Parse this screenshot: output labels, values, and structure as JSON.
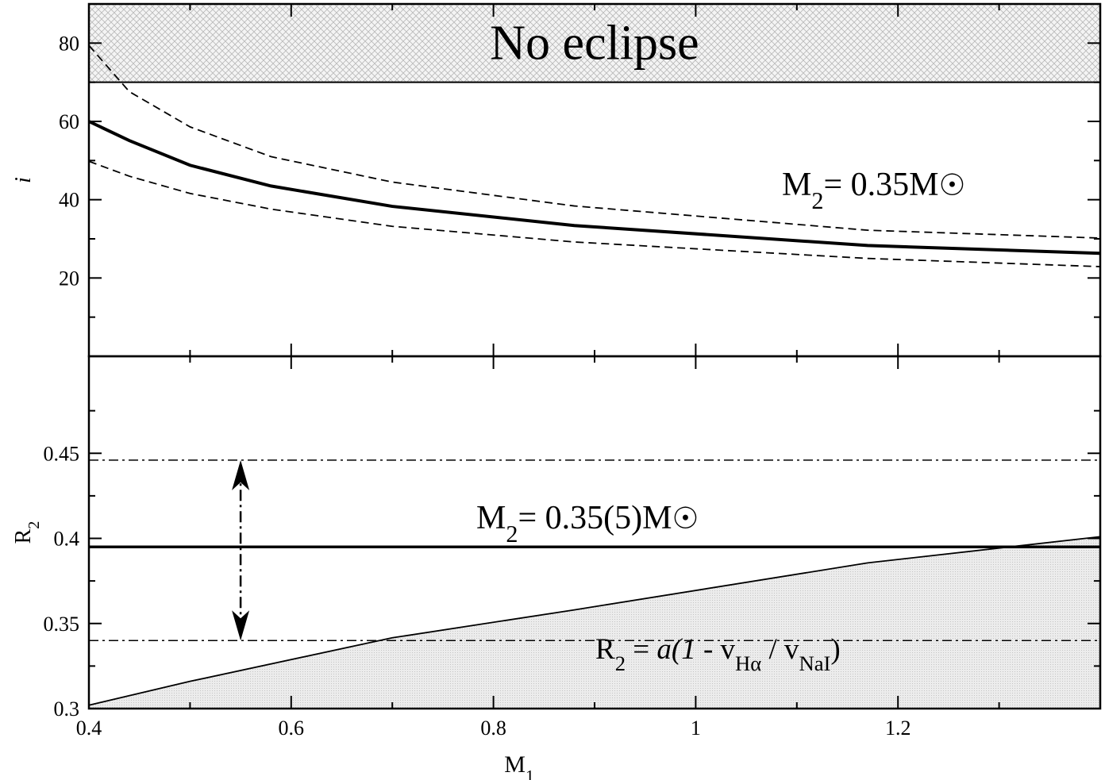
{
  "chart_data": [
    {
      "type": "line",
      "xlim": [
        0.4,
        1.4
      ],
      "ylim": [
        0,
        90
      ],
      "yticks": [
        20,
        40,
        60,
        80
      ],
      "yminorticks": [
        10,
        30,
        50,
        70,
        90
      ],
      "ylabel": [
        {
          "text": "i",
          "style": "italic"
        }
      ],
      "region": {
        "from": 70,
        "to": 90,
        "label": "No eclipse"
      },
      "x": [
        0.4,
        0.44,
        0.5,
        0.58,
        0.7,
        0.88,
        1.17,
        1.4
      ],
      "series": [
        {
          "style": "solid",
          "color": "#000000",
          "values": [
            60,
            55.1,
            48.8,
            43.5,
            38.3,
            33.4,
            28.3,
            26.3
          ]
        },
        {
          "style": "dashed",
          "color": "#000000",
          "values": [
            79.4,
            67.6,
            58.6,
            51,
            44.5,
            38.4,
            32.2,
            30.2
          ]
        },
        {
          "style": "dashed",
          "color": "#000000",
          "values": [
            49.8,
            46,
            41.6,
            37.6,
            33.2,
            29.2,
            25,
            22.9
          ]
        }
      ],
      "annotations": [
        [
          {
            "text": "M",
            "style": "normal"
          },
          {
            "text": "2",
            "style": "sub"
          },
          {
            "text": "= 0.35M",
            "style": "normal"
          },
          {
            "text": "☉",
            "style": "symbol"
          }
        ]
      ]
    },
    {
      "type": "line",
      "xlim": [
        0.4,
        1.4
      ],
      "ylim": [
        0.3,
        0.507
      ],
      "xticks": [
        0.4,
        0.6,
        0.8,
        1,
        1.2
      ],
      "xminorticks": [
        0.5,
        0.7,
        0.9,
        1.1,
        1.3
      ],
      "yticks": [
        0.3,
        0.35,
        0.4,
        0.45
      ],
      "yminorticks": [
        0.325,
        0.375,
        0.425,
        0.475
      ],
      "xlabel": [
        {
          "text": "M",
          "style": "normal"
        },
        {
          "text": "1",
          "style": "sub"
        }
      ],
      "ylabel": [
        {
          "text": "R",
          "style": "normal"
        },
        {
          "text": "2",
          "style": "sub"
        }
      ],
      "x": [
        0.4,
        0.5,
        0.7,
        0.88,
        1.17,
        1.4
      ],
      "series": [
        {
          "style": "solid",
          "color": "#000000",
          "fill": true,
          "values": [
            0.302,
            0.316,
            0.3416,
            0.358,
            0.3856,
            0.401
          ]
        }
      ],
      "hlines": [
        {
          "value": 0.446,
          "style": "dashdot"
        },
        {
          "value": 0.395,
          "style": "solid"
        },
        {
          "value": 0.34,
          "style": "dashdot"
        }
      ],
      "arrow": {
        "x": 0.55,
        "y": [
          0.34,
          0.446
        ]
      },
      "annotations": [
        [
          {
            "text": "M",
            "style": "normal"
          },
          {
            "text": "2",
            "style": "sub"
          },
          {
            "text": "= 0.35(5)M",
            "style": "normal"
          },
          {
            "text": "☉",
            "style": "symbol"
          }
        ],
        [
          {
            "text": "R",
            "style": "normal"
          },
          {
            "text": "2",
            "style": "sub"
          },
          {
            "text": " = ",
            "style": "normal"
          },
          {
            "text": "a(1 - ",
            "style": "italic"
          },
          {
            "text": " v",
            "style": "normal"
          },
          {
            "text": "Hα",
            "style": "sub"
          },
          {
            "text": " / v",
            "style": "normal"
          },
          {
            "text": "NaI",
            "style": "sub"
          },
          {
            "text": ")",
            "style": "normal"
          }
        ]
      ]
    }
  ]
}
